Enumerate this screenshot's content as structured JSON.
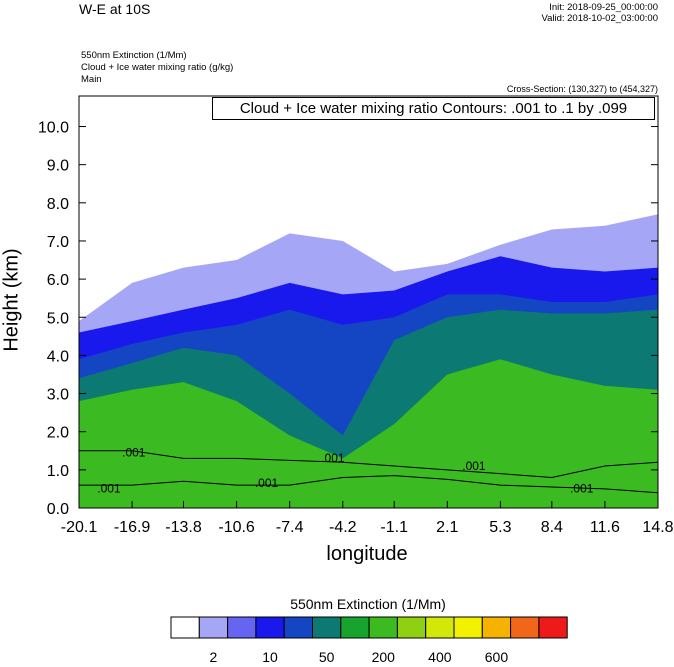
{
  "header": {
    "title": "W-E at 10S",
    "init": "Init: 2018-09-25_00:00:00",
    "valid": "Valid: 2018-10-02_03:00:00",
    "field1": "550nm Extinction   (1/Mm)",
    "field2": "Cloud + Ice water mixing ratio   (g/kg)",
    "field3": "Main",
    "cross_section": "Cross-Section: (130,327) to (454,327)"
  },
  "contour_label": "Cloud + Ice water mixing ratio Contours: .001 to .1 by .099",
  "chart_data": {
    "type": "heatmap",
    "title": "W-E at 10S",
    "xlabel": "longitude",
    "ylabel": "Height (km)",
    "xlim": [
      -20.1,
      14.8
    ],
    "ylim": [
      0.0,
      10.8
    ],
    "x_ticks": [
      "-20.1",
      "-16.9",
      "-13.8",
      "-10.6",
      "-7.4",
      "-4.2",
      "-1.1",
      "2.1",
      "5.3",
      "8.4",
      "11.6",
      "14.8"
    ],
    "y_ticks": [
      "0.0",
      "1.0",
      "2.0",
      "3.0",
      "4.0",
      "5.0",
      "6.0",
      "7.0",
      "8.0",
      "9.0",
      "10.0"
    ],
    "colorbar": {
      "title": "550nm Extinction  (1/Mm)",
      "colors": [
        "#ffffff",
        "#a6a6f7",
        "#6565f2",
        "#1919ee",
        "#1446c4",
        "#0c7a72",
        "#17a32e",
        "#3cba22",
        "#8fd112",
        "#d1e808",
        "#f2f200",
        "#f5b300",
        "#f2661a",
        "#ee1a1a"
      ],
      "labels": [
        "2",
        "10",
        "50",
        "200",
        "400",
        "600"
      ]
    },
    "extinction_layer_tops_km": {
      "x": [
        -20.1,
        -16.9,
        -13.8,
        -10.6,
        -7.4,
        -4.2,
        -1.1,
        2.1,
        5.3,
        8.4,
        11.6,
        14.8
      ],
      "gt_2": [
        4.9,
        5.9,
        6.3,
        6.5,
        7.2,
        7.0,
        6.2,
        6.4,
        6.9,
        7.3,
        7.4,
        7.7
      ],
      "gt_10": [
        4.6,
        4.9,
        5.2,
        5.5,
        5.9,
        5.6,
        5.7,
        6.2,
        6.6,
        6.3,
        6.2,
        6.3
      ],
      "gt_50": [
        3.9,
        4.3,
        4.6,
        4.8,
        5.2,
        4.8,
        5.0,
        5.6,
        5.6,
        5.4,
        5.4,
        5.6
      ],
      "gt_200": [
        3.4,
        3.8,
        4.2,
        4.0,
        3.0,
        1.9,
        4.4,
        5.0,
        5.2,
        5.1,
        5.1,
        5.2
      ],
      "gt_400": [
        2.8,
        3.1,
        3.3,
        2.8,
        1.9,
        1.3,
        2.2,
        3.5,
        3.9,
        3.5,
        3.2,
        3.1
      ]
    },
    "cloud_contours": {
      "level": ".001",
      "x": [
        -20.1,
        -16.9,
        -13.8,
        -10.6,
        -7.4,
        -4.2,
        -1.1,
        2.1,
        5.3,
        8.4,
        11.6,
        14.8
      ],
      "top_km": [
        1.5,
        1.5,
        1.3,
        1.3,
        1.25,
        1.2,
        1.1,
        1.0,
        0.9,
        0.8,
        1.1,
        1.2
      ],
      "base_km": [
        0.6,
        0.6,
        0.7,
        0.6,
        0.6,
        0.8,
        0.85,
        0.75,
        0.6,
        0.55,
        0.5,
        0.4
      ]
    }
  }
}
